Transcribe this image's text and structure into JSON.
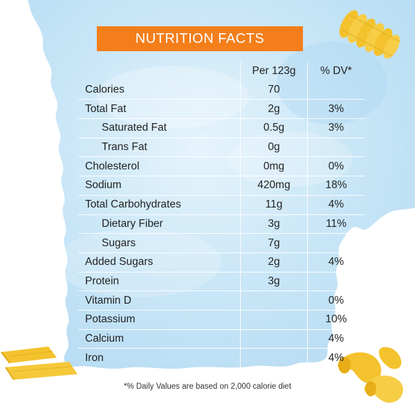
{
  "title": "NUTRITION FACTS",
  "headers": {
    "amount": "Per 123g",
    "dv": "% DV*"
  },
  "rows": [
    {
      "name": "Calories",
      "amount": "70",
      "dv": ""
    },
    {
      "name": "Total Fat",
      "amount": "2g",
      "dv": "3%"
    },
    {
      "name": "Saturated Fat",
      "amount": "0.5g",
      "dv": "3%"
    },
    {
      "name": "Trans Fat",
      "amount": "0g",
      "dv": ""
    },
    {
      "name": "Cholesterol",
      "amount": "0mg",
      "dv": "0%"
    },
    {
      "name": "Sodium",
      "amount": "420mg",
      "dv": "18%"
    },
    {
      "name": "Total Carbohydrates",
      "amount": "11g",
      "dv": "4%"
    },
    {
      "name": "Dietary Fiber",
      "amount": "3g",
      "dv": "11%"
    },
    {
      "name": "Sugars",
      "amount": "7g",
      "dv": ""
    },
    {
      "name": "Added Sugars",
      "amount": "2g",
      "dv": "4%"
    },
    {
      "name": "Protein",
      "amount": "3g",
      "dv": ""
    },
    {
      "name": "Vitamin D",
      "amount": "",
      "dv": "0%"
    },
    {
      "name": "Potassium",
      "amount": "",
      "dv": "10%"
    },
    {
      "name": "Calcium",
      "amount": "",
      "dv": "4%"
    },
    {
      "name": "Iron",
      "amount": "",
      "dv": "4%"
    }
  ],
  "footnote": "*% Daily Values are based on 2,000 calorie diet",
  "colors": {
    "title_bg": "#f47e1a",
    "sky": "#cfe9f8",
    "pasta": "#f3c22d"
  },
  "decorations": [
    "fusilli-pasta",
    "penne-pasta",
    "elbow-macaroni"
  ]
}
